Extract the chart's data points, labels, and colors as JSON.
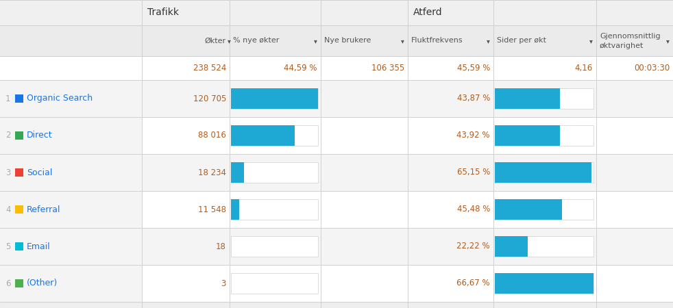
{
  "title_trafikk": "Trafikk",
  "title_atferd": "Atferd",
  "col_headers": [
    "Økter",
    "% nye økter",
    "Nye brukere",
    "Fluktfrekvens",
    "Sider per økt",
    "Gjennomsnittlig\nøktvarighet"
  ],
  "summary_row": [
    "238 524",
    "44,59 %",
    "106 355",
    "45,59 %",
    "4,16",
    "00:03:30"
  ],
  "rows": [
    {
      "num": "1",
      "color": "#1a73e8",
      "label": "Organic Search",
      "okter": 120705,
      "okter_str": "120 705",
      "flukt": 43.87,
      "flukt_str": "43,87 %"
    },
    {
      "num": "2",
      "color": "#34a853",
      "label": "Direct",
      "okter": 88016,
      "okter_str": "88 016",
      "flukt": 43.92,
      "flukt_str": "43,92 %"
    },
    {
      "num": "3",
      "color": "#ea4335",
      "label": "Social",
      "okter": 18234,
      "okter_str": "18 234",
      "flukt": 65.15,
      "flukt_str": "65,15 %"
    },
    {
      "num": "4",
      "color": "#fbbc05",
      "label": "Referral",
      "okter": 11548,
      "okter_str": "11 548",
      "flukt": 45.48,
      "flukt_str": "45,48 %"
    },
    {
      "num": "5",
      "color": "#00bcd4",
      "label": "Email",
      "okter": 18,
      "okter_str": "18",
      "flukt": 22.22,
      "flukt_str": "22,22 %"
    },
    {
      "num": "6",
      "color": "#4caf50",
      "label": "(Other)",
      "okter": 3,
      "okter_str": "3",
      "flukt": 66.67,
      "flukt_str": "66,67 %"
    }
  ],
  "max_okter": 120705,
  "max_flukt": 66.67,
  "bar_color": "#1ea8d4",
  "col_bg_light": "#f4f4f4",
  "col_bg_white": "#ffffff",
  "row_bg_gray": "#f4f4f4",
  "row_bg_white": "#ffffff",
  "header_section_bg": "#f0f0f0",
  "col_header_bg": "#ebebeb",
  "summary_bg": "#ffffff",
  "text_label": "#1a73e8",
  "text_num": "#b05c1e",
  "text_header": "#555555",
  "text_dark": "#333333",
  "text_rownum": "#aaaaaa",
  "grid_color": "#d0d0d0",
  "fig_bg": "#eeeeee"
}
